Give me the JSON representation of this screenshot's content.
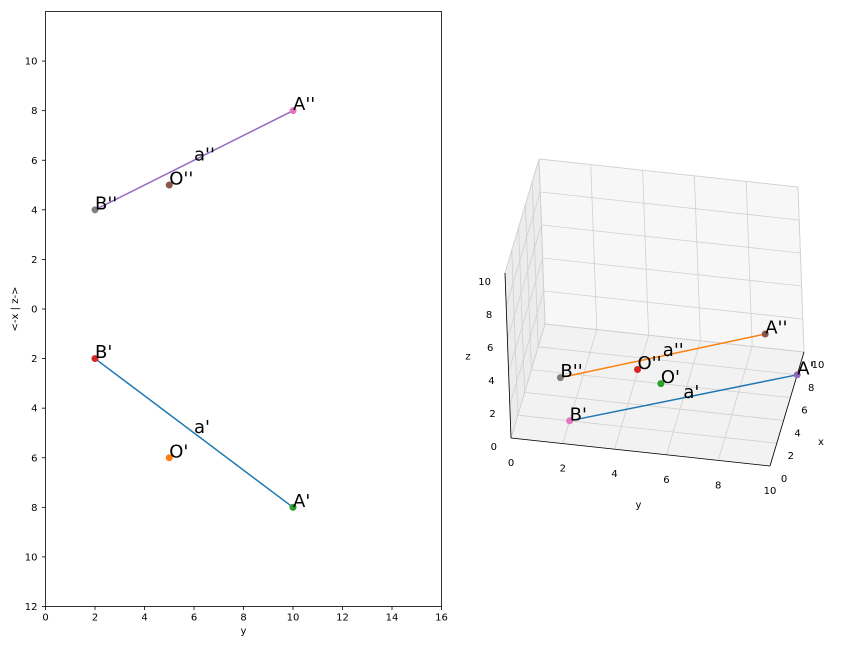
{
  "colors": {
    "line_plan": "#1f77b4",
    "line_elev": "#9467bd",
    "line3d_upper": "#ff7f0e",
    "line3d_lower": "#1f77b4",
    "green": "#2ca02c",
    "orange": "#ff7f0e",
    "red": "#d62728",
    "brown": "#8c564b",
    "pink": "#e377c2",
    "gray": "#7f7f7f",
    "purple": "#9467bd"
  },
  "chart_data": [
    {
      "type": "scatter",
      "xlabel": "y",
      "ylabel": "<-x | z->",
      "xlim": [
        0,
        16
      ],
      "ylim": [
        -12,
        12
      ],
      "x_ticks": [
        0,
        2,
        4,
        6,
        8,
        10,
        12,
        14,
        16
      ],
      "y_ticks": [
        -12,
        -10,
        -8,
        -6,
        -4,
        -2,
        0,
        2,
        4,
        6,
        8,
        10
      ],
      "y_tick_labels": [
        "12",
        "10",
        "8",
        "6",
        "4",
        "2",
        "0",
        "2",
        "4",
        "6",
        "8",
        "10"
      ],
      "lines": [
        {
          "label": "a'",
          "x": [
            10,
            2
          ],
          "y": [
            -8,
            -2
          ],
          "color_key": "line_plan",
          "label_at": [
            6,
            -5
          ]
        },
        {
          "label": "a''",
          "x": [
            2,
            10
          ],
          "y": [
            4,
            8
          ],
          "color_key": "line_elev",
          "label_at": [
            6,
            6
          ]
        }
      ],
      "points": [
        {
          "label": "A'",
          "x": 10,
          "y": -8,
          "color_key": "green"
        },
        {
          "label": "B'",
          "x": 2,
          "y": -2,
          "color_key": "red"
        },
        {
          "label": "O'",
          "x": 5,
          "y": -6,
          "color_key": "orange"
        },
        {
          "label": "A''",
          "x": 10,
          "y": 8,
          "color_key": "pink"
        },
        {
          "label": "B''",
          "x": 2,
          "y": 4,
          "color_key": "gray"
        },
        {
          "label": "O''",
          "x": 5,
          "y": 5,
          "color_key": "brown"
        }
      ]
    },
    {
      "type": "scatter3d",
      "xlabel": "x",
      "ylabel": "y",
      "zlabel": "z",
      "xlim": [
        0,
        10
      ],
      "ylim": [
        0,
        10
      ],
      "zlim": [
        0,
        10
      ],
      "x_ticks": [
        0,
        2,
        4,
        6,
        8,
        10
      ],
      "y_ticks": [
        0,
        2,
        4,
        6,
        8,
        10
      ],
      "z_ticks": [
        0,
        2,
        4,
        6,
        8,
        10
      ],
      "lines": [
        {
          "label": "a''",
          "from": [
            0,
            10,
            8
          ],
          "to": [
            0,
            2,
            4
          ],
          "color_key": "line3d_upper",
          "label_at": [
            0,
            6,
            6
          ]
        },
        {
          "label": "a'",
          "from": [
            8,
            10,
            0
          ],
          "to": [
            2,
            2,
            0
          ],
          "color_key": "line3d_lower",
          "label_at": [
            5,
            6,
            0
          ]
        }
      ],
      "points": [
        {
          "label": "A''",
          "xyz": [
            0,
            10,
            8
          ],
          "color_key": "brown"
        },
        {
          "label": "B''",
          "xyz": [
            0,
            2,
            4
          ],
          "color_key": "gray"
        },
        {
          "label": "O''",
          "xyz": [
            0,
            5,
            5
          ],
          "color_key": "red"
        },
        {
          "label": "A'",
          "xyz": [
            8,
            10,
            0
          ],
          "color_key": "purple"
        },
        {
          "label": "B'",
          "xyz": [
            2,
            2,
            0
          ],
          "color_key": "pink"
        },
        {
          "label": "O'",
          "xyz": [
            6,
            5,
            0
          ],
          "color_key": "green"
        }
      ]
    }
  ]
}
